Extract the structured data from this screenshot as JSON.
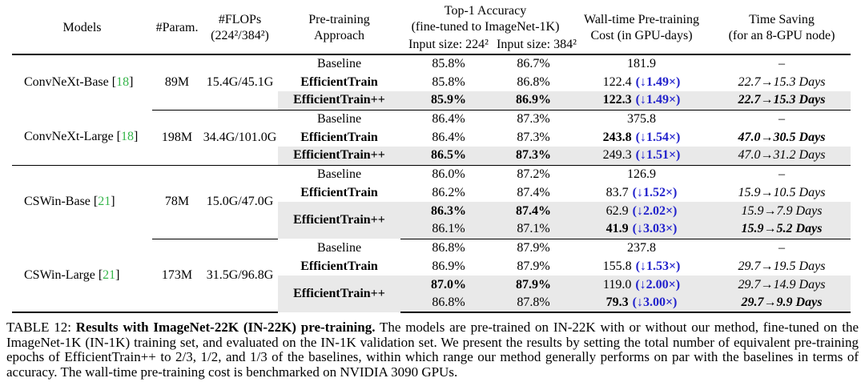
{
  "colors": {
    "highlight_gray": "#e9e9e9",
    "annotation_blue": "#2222cc",
    "citation_green": "#35b54a"
  },
  "table": {
    "ref_l": "[",
    "ref_r": "]",
    "header": {
      "models": "Models",
      "params": "#Param.",
      "flops1": "#FLOPs",
      "flops2": "(224²/384²)",
      "approach1": "Pre-training",
      "approach2": "Approach",
      "acc_group1": "Top-1 Accuracy",
      "acc_group2": "(fine-tuned to ImageNet-1K)",
      "acc224": "Input size: 224²",
      "acc384": "Input size: 384²",
      "cost1": "Wall-time Pre-training",
      "cost2": "Cost (in GPU-days)",
      "saving1": "Time Saving",
      "saving2": "(for an 8-GPU node)"
    },
    "blocks": [
      {
        "model": "ConvNeXt-Base",
        "ref": "18",
        "params": "89M",
        "flops": "15.4G/45.1G",
        "rows": [
          {
            "approach": "Baseline",
            "acc224": "85.8%",
            "acc384": "86.7%",
            "cost": "181.9",
            "cost_note": "",
            "saving": "–"
          },
          {
            "approach": "EfficientTrain",
            "acc224": "85.8%",
            "acc384": "86.8%",
            "cost": "122.4",
            "cost_note": "(↓1.49×)",
            "saving": "22.7→15.3 Days"
          },
          {
            "approach": "EfficientTrain++",
            "acc224": "85.9%",
            "acc384": "86.9%",
            "cost": "122.3",
            "cost_note": "(↓1.49×)",
            "saving": "22.7→15.3 Days"
          }
        ]
      },
      {
        "model": "ConvNeXt-Large",
        "ref": "18",
        "params": "198M",
        "flops": "34.4G/101.0G",
        "rows": [
          {
            "approach": "Baseline",
            "acc224": "86.4%",
            "acc384": "87.3%",
            "cost": "375.8",
            "cost_note": "",
            "saving": "–"
          },
          {
            "approach": "EfficientTrain",
            "acc224": "86.4%",
            "acc384": "87.3%",
            "cost": "243.8",
            "cost_note": "(↓1.54×)",
            "saving": "47.0→30.5 Days"
          },
          {
            "approach": "EfficientTrain++",
            "acc224": "86.5%",
            "acc384": "87.3%",
            "cost": "249.3",
            "cost_note": "(↓1.51×)",
            "saving": "47.0→31.2 Days"
          }
        ]
      },
      {
        "model": "CSWin-Base",
        "ref": "21",
        "params": "78M",
        "flops": "15.0G/47.0G",
        "rows": [
          {
            "approach": "Baseline",
            "acc224": "86.0%",
            "acc384": "87.2%",
            "cost": "126.9",
            "cost_note": "",
            "saving": "–"
          },
          {
            "approach": "EfficientTrain",
            "acc224": "86.2%",
            "acc384": "87.4%",
            "cost": "83.7",
            "cost_note": "(↓1.52×)",
            "saving": "15.9→10.5 Days"
          },
          {
            "approach": "EfficientTrain++",
            "acc224": "86.3%",
            "acc384": "87.4%",
            "cost": "62.9",
            "cost_note": "(↓2.02×)",
            "saving": "15.9→7.9 Days"
          },
          {
            "approach": "",
            "acc224": "86.1%",
            "acc384": "87.1%",
            "cost": "41.9",
            "cost_note": "(↓3.03×)",
            "saving": "15.9→5.2 Days"
          }
        ]
      },
      {
        "model": "CSWin-Large",
        "ref": "21",
        "params": "173M",
        "flops": "31.5G/96.8G",
        "rows": [
          {
            "approach": "Baseline",
            "acc224": "86.8%",
            "acc384": "87.9%",
            "cost": "237.8",
            "cost_note": "",
            "saving": "–"
          },
          {
            "approach": "EfficientTrain",
            "acc224": "86.9%",
            "acc384": "87.9%",
            "cost": "155.8",
            "cost_note": "(↓1.53×)",
            "saving": "29.7→19.5 Days"
          },
          {
            "approach": "EfficientTrain++",
            "acc224": "87.0%",
            "acc384": "87.9%",
            "cost": "119.0",
            "cost_note": "(↓2.00×)",
            "saving": "29.7→14.9 Days"
          },
          {
            "approach": "",
            "acc224": "86.8%",
            "acc384": "87.8%",
            "cost": "79.3",
            "cost_note": "(↓3.00×)",
            "saving": "29.7→9.9 Days"
          }
        ]
      }
    ]
  },
  "caption": {
    "prefix": "TABLE 12: ",
    "title": "Results with ImageNet-22K (IN-22K) pre-training.",
    "body": " The models are pre-trained on IN-22K with or without our method, fine-tuned on the ImageNet-1K (IN-1K) training set, and evaluated on the IN-1K validation set. We present the results by setting the total number of equivalent pre-training epochs of EfficientTrain++ to 2/3, 1/2, and 1/3 of the baselines, within which range our method generally performs on par with the baselines in terms of accuracy. The wall-time pre-training cost is benchmarked on NVIDIA 3090 GPUs."
  }
}
